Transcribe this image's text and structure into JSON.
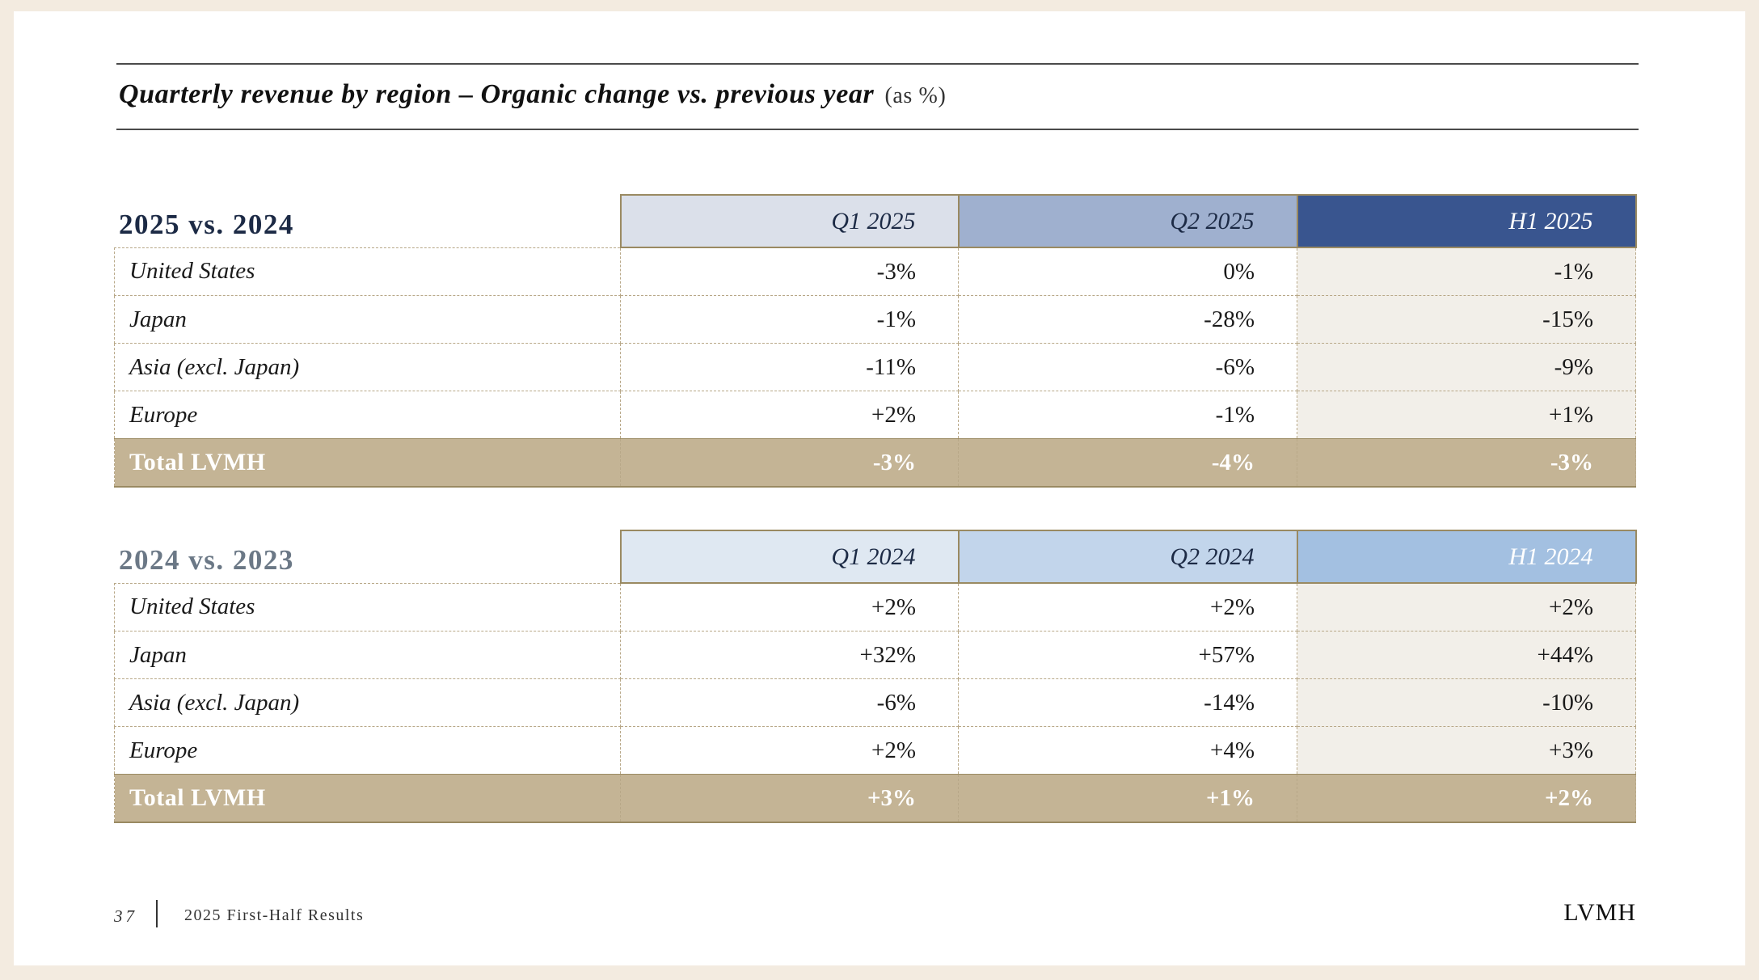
{
  "title": {
    "main": "Quarterly revenue by region – Organic change vs. previous year",
    "unit": "(as %)"
  },
  "sections": [
    {
      "heading": "2025 vs. 2024",
      "columns": [
        "Q1 2025",
        "Q2 2025",
        "H1 2025"
      ],
      "rows": [
        {
          "label": "United States",
          "values": [
            "-3%",
            "0%",
            "-1%"
          ]
        },
        {
          "label": "Japan",
          "values": [
            "-1%",
            "-28%",
            "-15%"
          ]
        },
        {
          "label": "Asia (excl. Japan)",
          "values": [
            "-11%",
            "-6%",
            "-9%"
          ]
        },
        {
          "label": "Europe",
          "values": [
            "+2%",
            "-1%",
            "+1%"
          ]
        }
      ],
      "total": {
        "label": "Total LVMH",
        "values": [
          "-3%",
          "-4%",
          "-3%"
        ]
      }
    },
    {
      "heading": "2024 vs. 2023",
      "columns": [
        "Q1 2024",
        "Q2 2024",
        "H1 2024"
      ],
      "rows": [
        {
          "label": "United States",
          "values": [
            "+2%",
            "+2%",
            "+2%"
          ]
        },
        {
          "label": "Japan",
          "values": [
            "+32%",
            "+57%",
            "+44%"
          ]
        },
        {
          "label": "Asia (excl. Japan)",
          "values": [
            "-6%",
            "-14%",
            "-10%"
          ]
        },
        {
          "label": "Europe",
          "values": [
            "+2%",
            "+4%",
            "+3%"
          ]
        }
      ],
      "total": {
        "label": "Total LVMH",
        "values": [
          "+3%",
          "+1%",
          "+2%"
        ]
      }
    }
  ],
  "footer": {
    "page_number": "37",
    "report_title": "2025 First-Half Results",
    "logo": "LVMH"
  },
  "colors": {
    "background": "#f3ebe0",
    "total_row": "#c4b495",
    "h1_2025_header": "#39558f",
    "h1_2024_header": "#a3c0e1"
  }
}
